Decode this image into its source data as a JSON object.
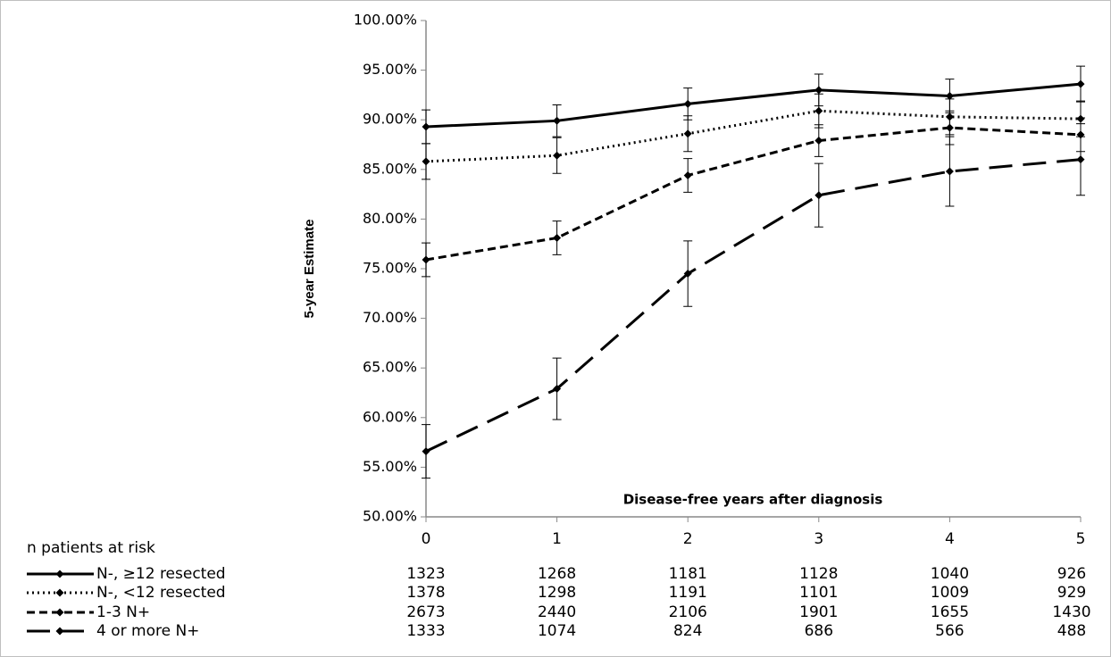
{
  "chart_data": {
    "type": "line",
    "y_label": "5-year Estimate",
    "x_label": "Disease-free years after diagnosis",
    "x": [
      0,
      1,
      2,
      3,
      4,
      5
    ],
    "xlim": [
      0,
      5
    ],
    "xticks": [
      0,
      1,
      2,
      3,
      4,
      5
    ],
    "ylim": [
      50,
      100
    ],
    "yticks": [
      {
        "value": 50,
        "label": "50.00%"
      },
      {
        "value": 55,
        "label": "55.00%"
      },
      {
        "value": 60,
        "label": "60.00%"
      },
      {
        "value": 65,
        "label": "65.00%"
      },
      {
        "value": 70,
        "label": "70.00%"
      },
      {
        "value": 75,
        "label": "75.00%"
      },
      {
        "value": 80,
        "label": "80.00%"
      },
      {
        "value": 85,
        "label": "85.00%"
      },
      {
        "value": 90,
        "label": "90.00%"
      },
      {
        "value": 95,
        "label": "95.00%"
      },
      {
        "value": 100,
        "label": "100.00%"
      }
    ],
    "grid": false,
    "risk_table_title": "n patients at risk",
    "series": [
      {
        "name": "N-, ≥12 resected",
        "color": "#000000",
        "line_style": "solid",
        "values": [
          89.3,
          89.9,
          91.6,
          93.0,
          92.4,
          93.6
        ],
        "errors": [
          1.7,
          1.6,
          1.6,
          1.6,
          1.7,
          1.8
        ],
        "at_risk": [
          1323,
          1268,
          1181,
          1128,
          1040,
          926
        ]
      },
      {
        "name": "N-, <12 resected",
        "color": "#000000",
        "line_style": "dotted",
        "values": [
          85.8,
          86.4,
          88.6,
          90.9,
          90.3,
          90.1
        ],
        "errors": [
          1.8,
          1.8,
          1.8,
          1.7,
          1.8,
          1.8
        ],
        "at_risk": [
          1378,
          1298,
          1191,
          1101,
          1009,
          929
        ]
      },
      {
        "name": "1-3 N+",
        "color": "#000000",
        "line_style": "dashed",
        "values": [
          75.9,
          78.1,
          84.4,
          87.9,
          89.2,
          88.5
        ],
        "errors": [
          1.7,
          1.7,
          1.7,
          1.6,
          1.7,
          1.7
        ],
        "at_risk": [
          2673,
          2440,
          2106,
          1901,
          1655,
          1430
        ]
      },
      {
        "name": "4 or more N+",
        "color": "#000000",
        "line_style": "long-dashed",
        "values": [
          56.6,
          62.9,
          74.5,
          82.4,
          84.8,
          86.0
        ],
        "errors": [
          2.7,
          3.1,
          3.3,
          3.2,
          3.5,
          3.6
        ],
        "at_risk": [
          1333,
          1074,
          824,
          686,
          566,
          488
        ]
      }
    ]
  }
}
